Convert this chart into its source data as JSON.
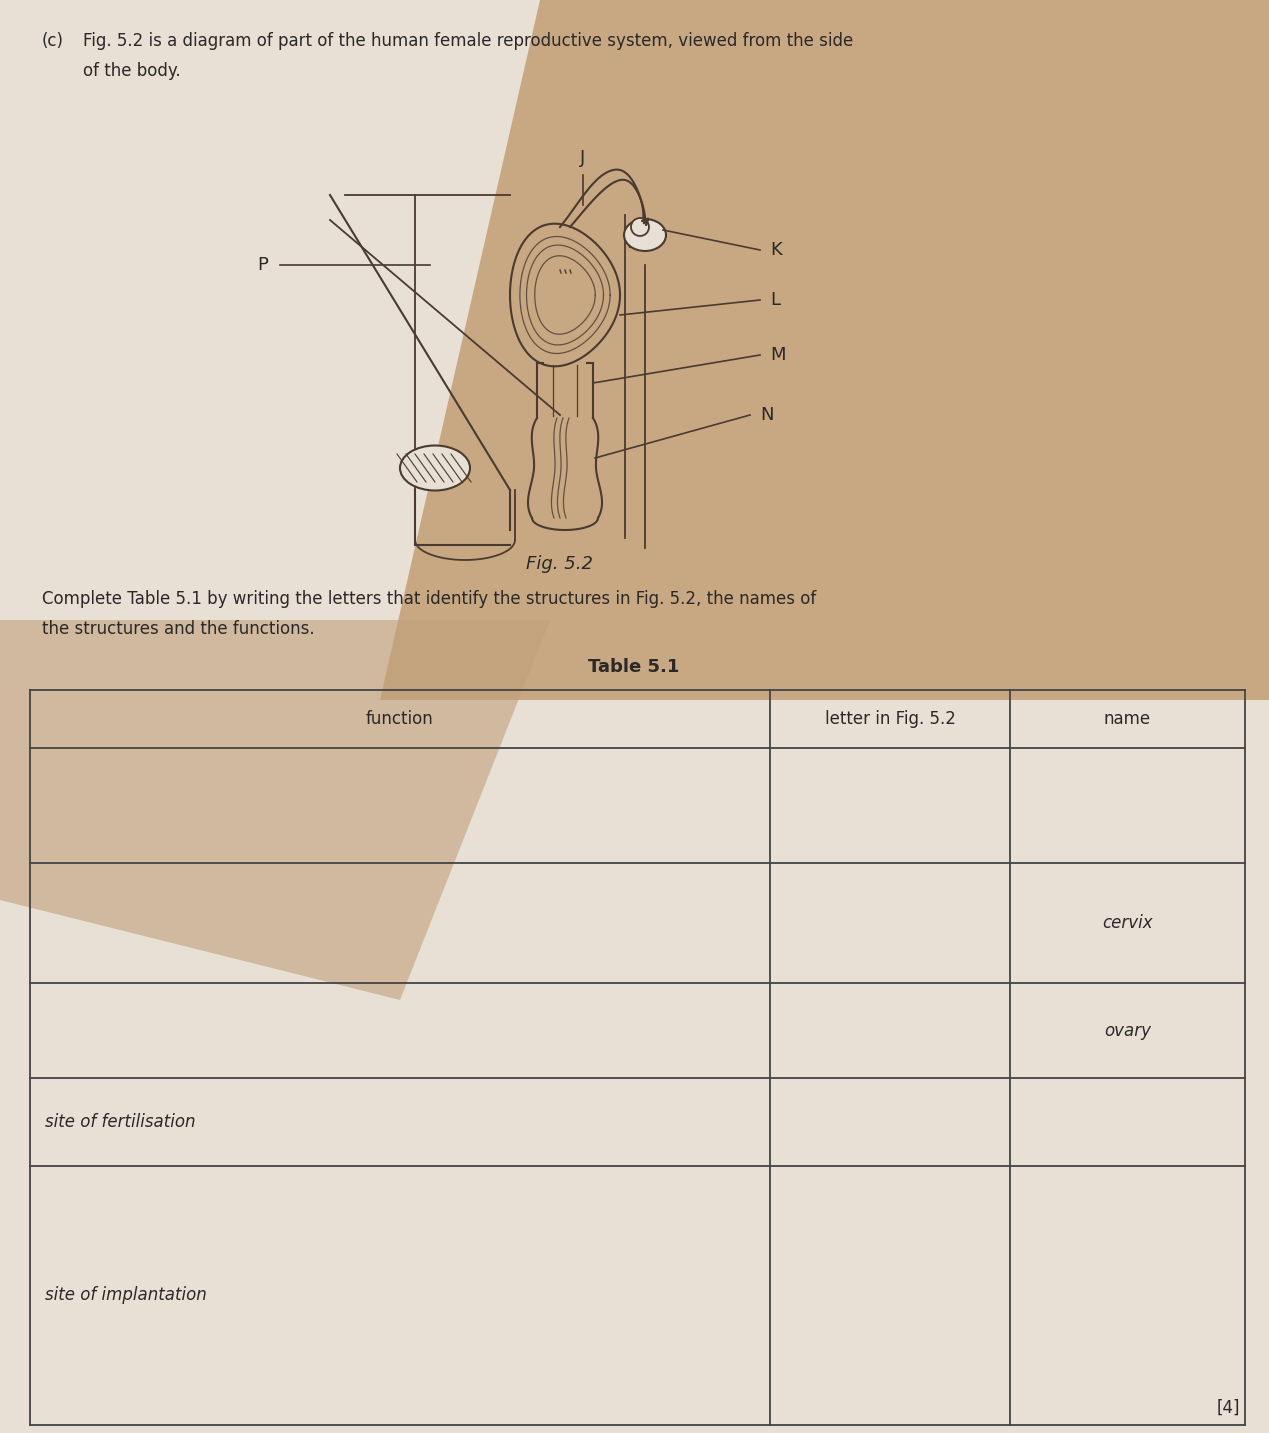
{
  "title_prefix": "(c)",
  "title_text": "Fig. 5.2 is a diagram of part of the human female reproductive system, viewed from the side\nof the body.",
  "fig_label": "Fig. 5.2",
  "instruction_text": "Complete Table 5.1 by writing the letters that identify the structures in Fig. 5.2, the names of\nthe structures and the functions.",
  "table_title": "Table 5.1",
  "table_headers": [
    "function",
    "letter in Fig. 5.2",
    "name"
  ],
  "table_rows": [
    [
      "",
      "",
      ""
    ],
    [
      "",
      "",
      "cervix"
    ],
    [
      "",
      "",
      "ovary"
    ],
    [
      "site of fertilisation",
      "",
      ""
    ],
    [
      "site of implantation",
      "",
      ""
    ]
  ],
  "bg_color": "#c8a882",
  "page_light": "#e8e0d5",
  "page_white": "#dbd3c8",
  "text_color": "#2a2828",
  "draw_color": "#3a3030",
  "table_line_color": "#444444",
  "score_label": "[4]",
  "label_fontsize": 12,
  "body_fontsize": 12,
  "title_fontsize": 12
}
